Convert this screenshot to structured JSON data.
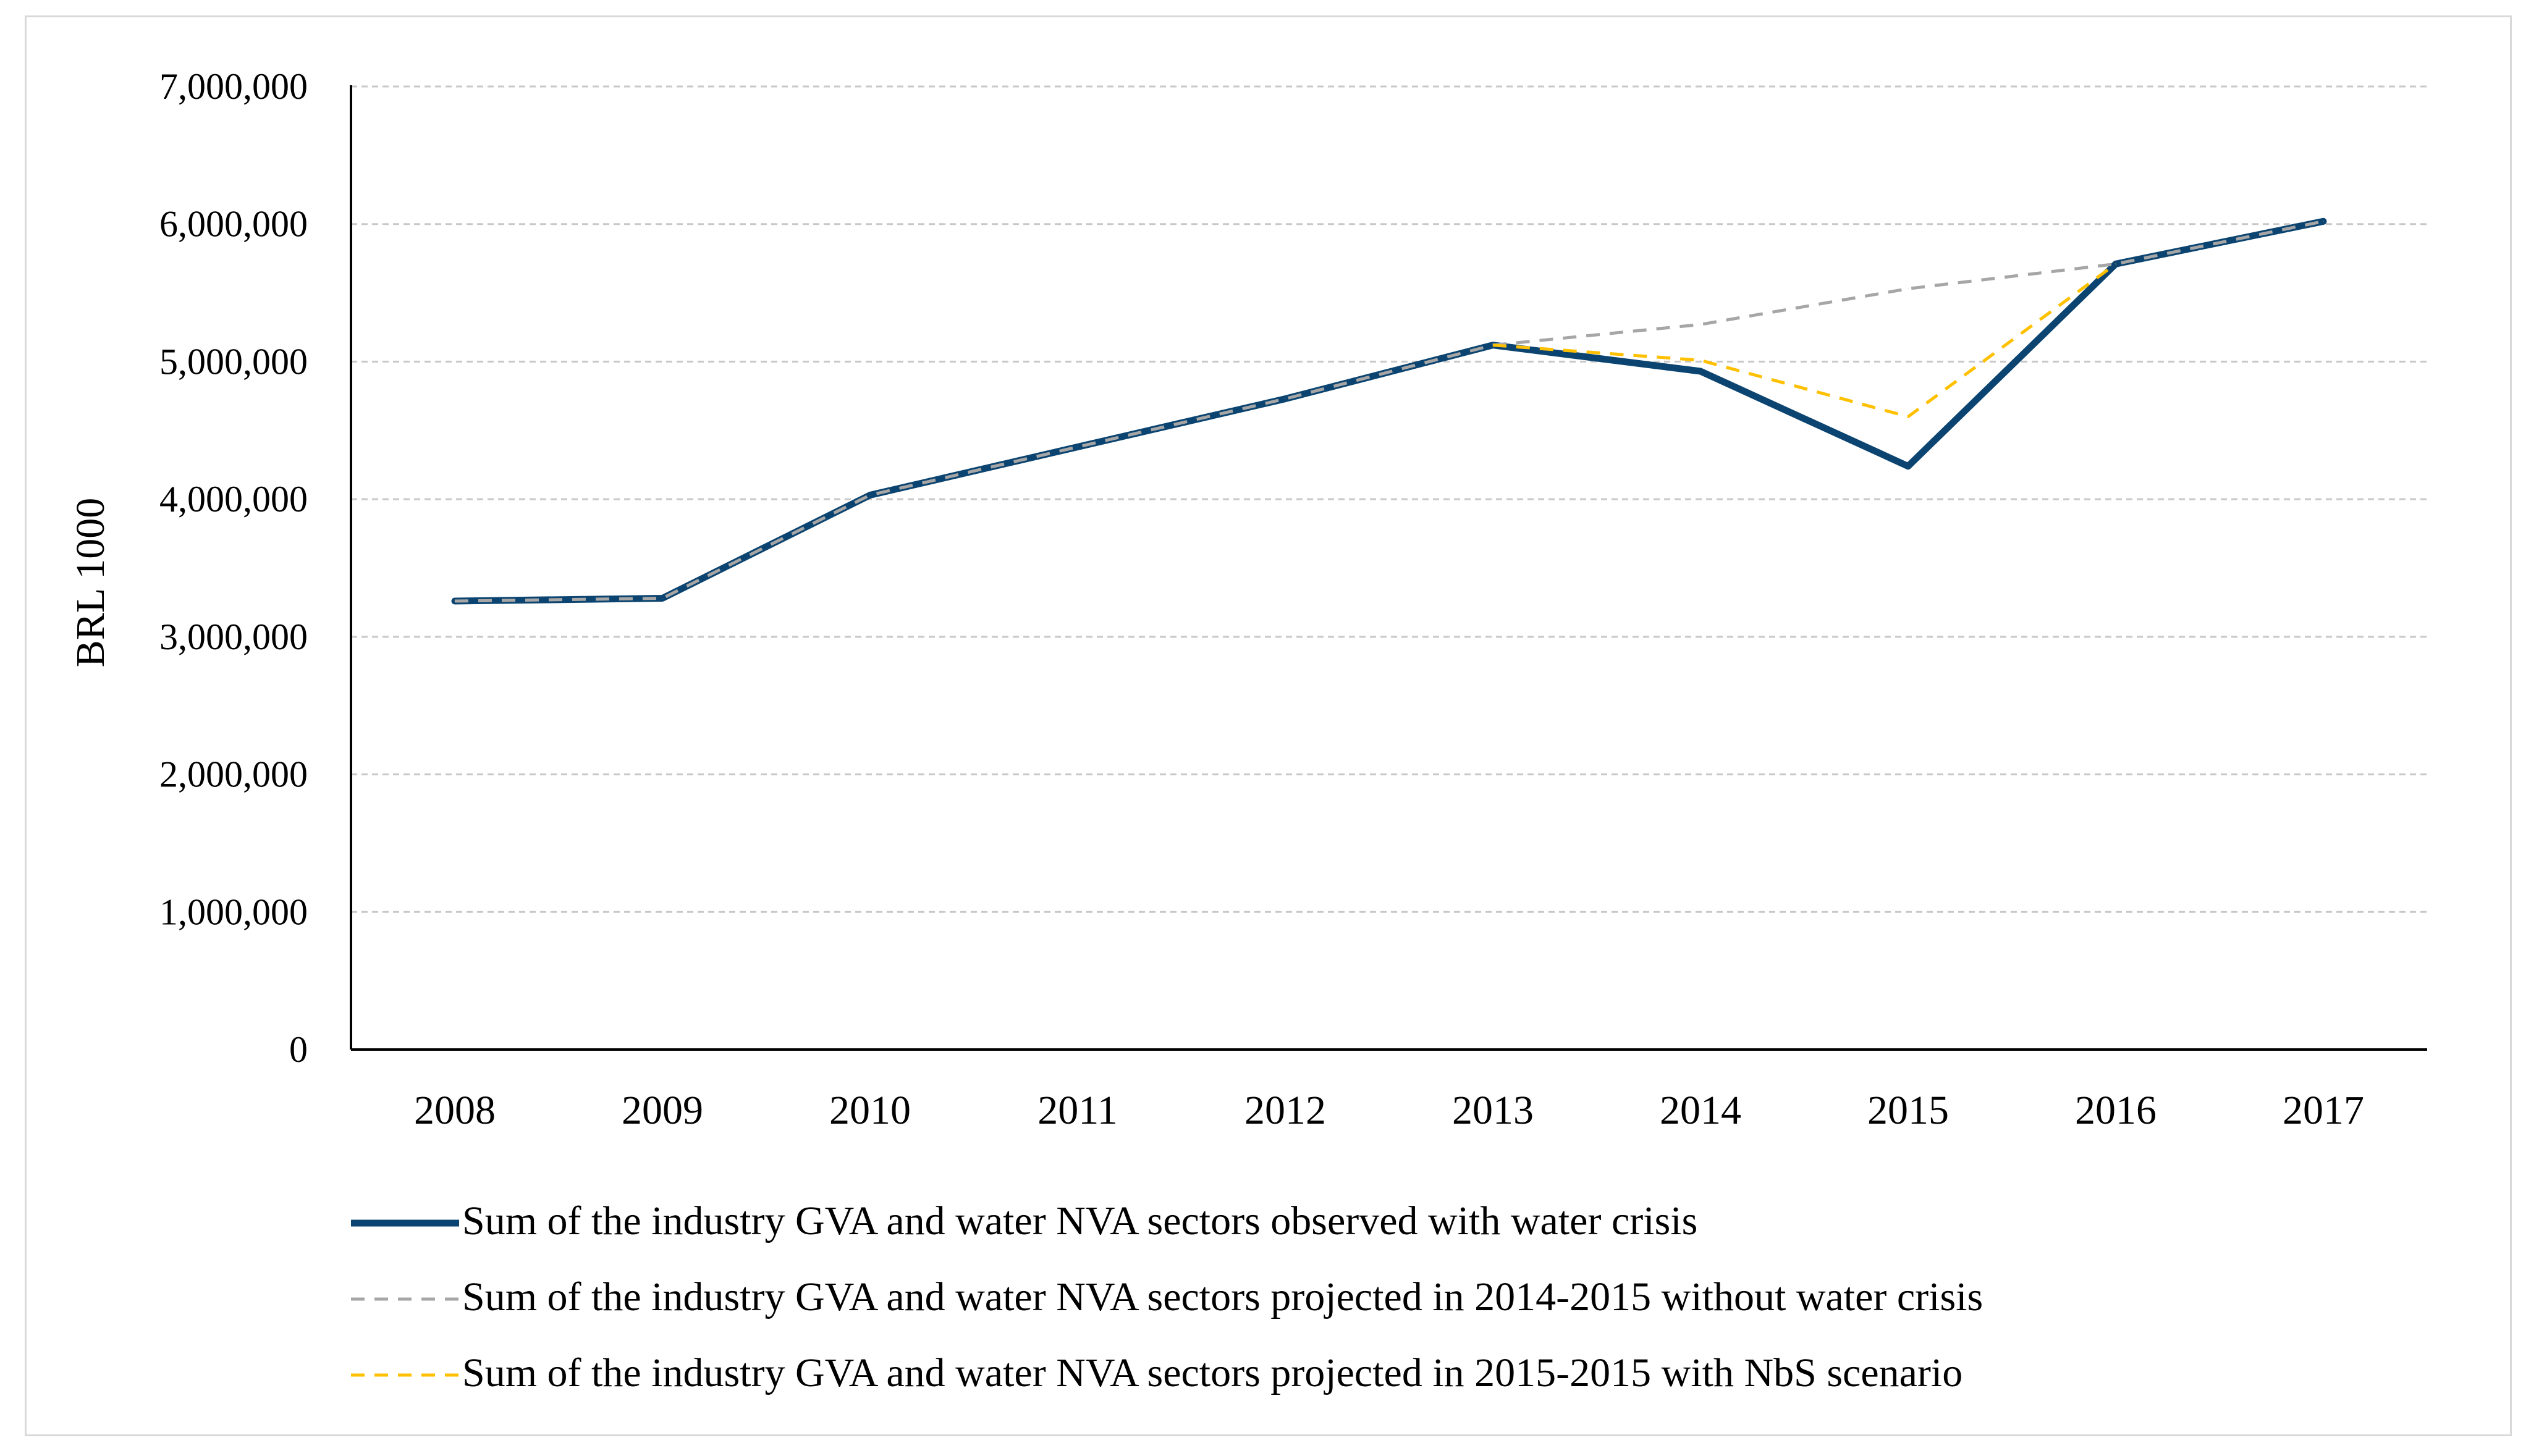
{
  "chart_data": {
    "type": "line",
    "title": "",
    "xlabel": "",
    "ylabel": "BRL 1000",
    "ylim": [
      0,
      7000000
    ],
    "yticks": [
      0,
      1000000,
      2000000,
      3000000,
      4000000,
      5000000,
      6000000,
      7000000
    ],
    "ytick_labels": [
      "0",
      "1,000,000",
      "2,000,000",
      "3,000,000",
      "4,000,000",
      "5,000,000",
      "6,000,000",
      "7,000,000"
    ],
    "categories": [
      "2008",
      "2009",
      "2010",
      "2011",
      "2012",
      "2013",
      "2014",
      "2015",
      "2016",
      "2017"
    ],
    "grid": true,
    "legend_position": "bottom",
    "series": [
      {
        "name": "Sum of the industry GVA and water NVA sectors observed with water crisis",
        "style": "solid",
        "color": "#0b4470",
        "values": [
          3260000,
          3280000,
          4030000,
          4380000,
          4730000,
          5120000,
          4930000,
          4240000,
          5710000,
          6020000
        ]
      },
      {
        "name": "Sum of the industry GVA and water NVA sectors projected in 2014-2015 without water crisis",
        "style": "dashed",
        "color": "#a6a6a6",
        "values": [
          3260000,
          3280000,
          4030000,
          4380000,
          4730000,
          5120000,
          5270000,
          5530000,
          5710000,
          6020000
        ]
      },
      {
        "name": "Sum of the industry GVA and water NVA sectors projected in 2015-2015 with NbS scenario",
        "style": "dashed",
        "color": "#ffc000",
        "values": [
          null,
          null,
          null,
          null,
          null,
          5120000,
          5010000,
          4600000,
          5710000,
          null
        ]
      }
    ]
  }
}
